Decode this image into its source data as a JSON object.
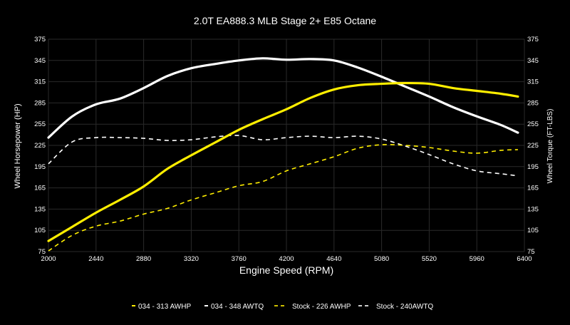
{
  "chart_data": {
    "type": "line",
    "title": "2.0T EA888.3 MLB Stage 2+ E85 Octane",
    "xlabel": "Engine Speed (RPM)",
    "ylabel": "Wheel Horsepower (HP)",
    "y2label": "Wheel Torque (FT-LBS)",
    "xlim": [
      2000,
      6400
    ],
    "ylim": [
      75,
      375
    ],
    "xticks": [
      2000,
      2440,
      2880,
      3320,
      3760,
      4200,
      4640,
      5080,
      5520,
      5960,
      6400
    ],
    "yticks": [
      75,
      105,
      135,
      165,
      195,
      225,
      255,
      285,
      315,
      345,
      375
    ],
    "grid": true,
    "legend_position": "bottom",
    "x": [
      2000,
      2220,
      2440,
      2660,
      2880,
      3100,
      3320,
      3540,
      3760,
      3980,
      4200,
      4420,
      4640,
      4860,
      5080,
      5300,
      5520,
      5740,
      5960,
      6180,
      6340
    ],
    "series": [
      {
        "name": "034 - 313 AWHP",
        "color": "#ffee00",
        "dash": false,
        "values": [
          90,
          110,
          130,
          148,
          167,
          192,
          211,
          229,
          247,
          262,
          276,
          292,
          304,
          310,
          312,
          313,
          312,
          306,
          302,
          298,
          294
        ]
      },
      {
        "name": "034 - 348 AWTQ",
        "color": "#ffffff",
        "dash": false,
        "values": [
          236,
          266,
          283,
          291,
          306,
          323,
          334,
          340,
          345,
          348,
          346,
          347,
          345,
          335,
          322,
          308,
          294,
          279,
          266,
          254,
          243
        ]
      },
      {
        "name": "Stock - 226 AWHP",
        "color": "#ffee00",
        "dash": true,
        "values": [
          76,
          98,
          111,
          118,
          128,
          136,
          148,
          158,
          168,
          174,
          189,
          199,
          209,
          221,
          226,
          225,
          222,
          217,
          214,
          218,
          219
        ]
      },
      {
        "name": "Stock - 240AWTQ",
        "color": "#ffffff",
        "dash": true,
        "values": [
          199,
          230,
          236,
          236,
          235,
          232,
          233,
          237,
          239,
          233,
          236,
          238,
          236,
          238,
          234,
          224,
          212,
          199,
          189,
          185,
          182
        ]
      }
    ]
  }
}
